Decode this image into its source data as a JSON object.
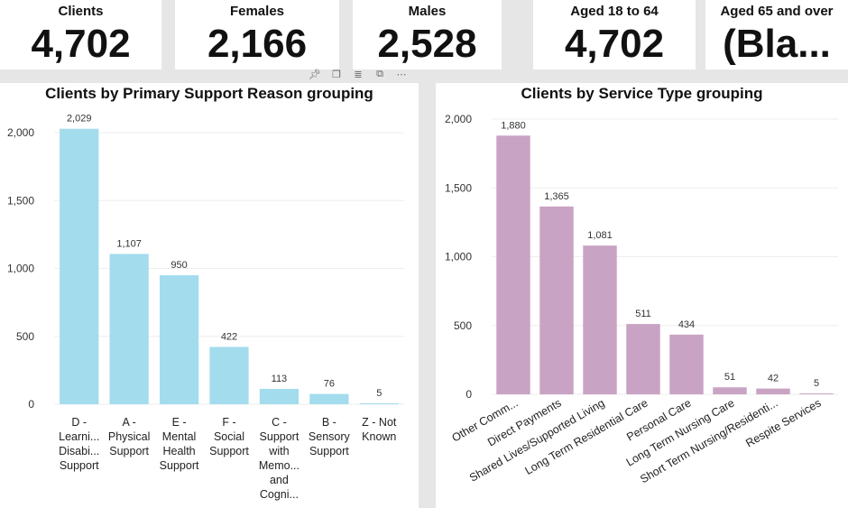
{
  "cards": [
    {
      "label": "Clients",
      "value": "4,702"
    },
    {
      "label": "Females",
      "value": "2,166"
    },
    {
      "label": "Males",
      "value": "2,528"
    },
    {
      "label": "Aged 18 to 64",
      "value": "4,702"
    },
    {
      "label": "Aged 65 and over",
      "value": "(Bla..."
    }
  ],
  "toolbar": {
    "icons": [
      "pin-icon",
      "copy-icon",
      "filter-icon",
      "focus-mode-icon",
      "more-options-icon"
    ]
  },
  "colors": {
    "bar_left": "#a3dced",
    "bar_right": "#c9a3c4"
  },
  "chart_data": [
    {
      "type": "bar",
      "title": "Clients by Primary Support Reason grouping",
      "categories": [
        [
          "D -",
          "Learni...",
          "Disabi...",
          "Support"
        ],
        [
          "A -",
          "Physical",
          "Support"
        ],
        [
          "E -",
          "Mental",
          "Health",
          "Support"
        ],
        [
          "F -",
          "Social",
          "Support"
        ],
        [
          "C -",
          "Support",
          "with",
          "Memo...",
          "and",
          "Cogni..."
        ],
        [
          "B -",
          "Sensory",
          "Support"
        ],
        [
          "Z - Not",
          "Known"
        ]
      ],
      "values": [
        2029,
        1107,
        950,
        422,
        113,
        76,
        5
      ],
      "value_labels": [
        "2,029",
        "1,107",
        "950",
        "422",
        "113",
        "76",
        "5"
      ],
      "yticks": [
        0,
        500,
        1000,
        1500,
        2000
      ],
      "ytick_labels": [
        "0",
        "500",
        "1,000",
        "1,500",
        "2,000"
      ],
      "ylim": [
        0,
        2100
      ],
      "xlabel": "",
      "ylabel": "",
      "grid": true
    },
    {
      "type": "bar",
      "title": "Clients by Service Type grouping",
      "categories": [
        "Other Comm...",
        "Direct Payments",
        "Shared Lives/Supported Living",
        "Long Term Residential Care",
        "Personal Care",
        "Long Term Nursing Care",
        "Short Term Nursing/Residenti...",
        "Respite Services"
      ],
      "values": [
        1880,
        1365,
        1081,
        511,
        434,
        51,
        42,
        5
      ],
      "value_labels": [
        "1,880",
        "1,365",
        "1,081",
        "511",
        "434",
        "51",
        "42",
        "5"
      ],
      "yticks": [
        0,
        500,
        1000,
        1500,
        2000
      ],
      "ytick_labels": [
        "0",
        "500",
        "1,000",
        "1,500",
        "2,000"
      ],
      "ylim": [
        0,
        2000
      ],
      "xlabel": "",
      "ylabel": "",
      "grid": true
    }
  ]
}
